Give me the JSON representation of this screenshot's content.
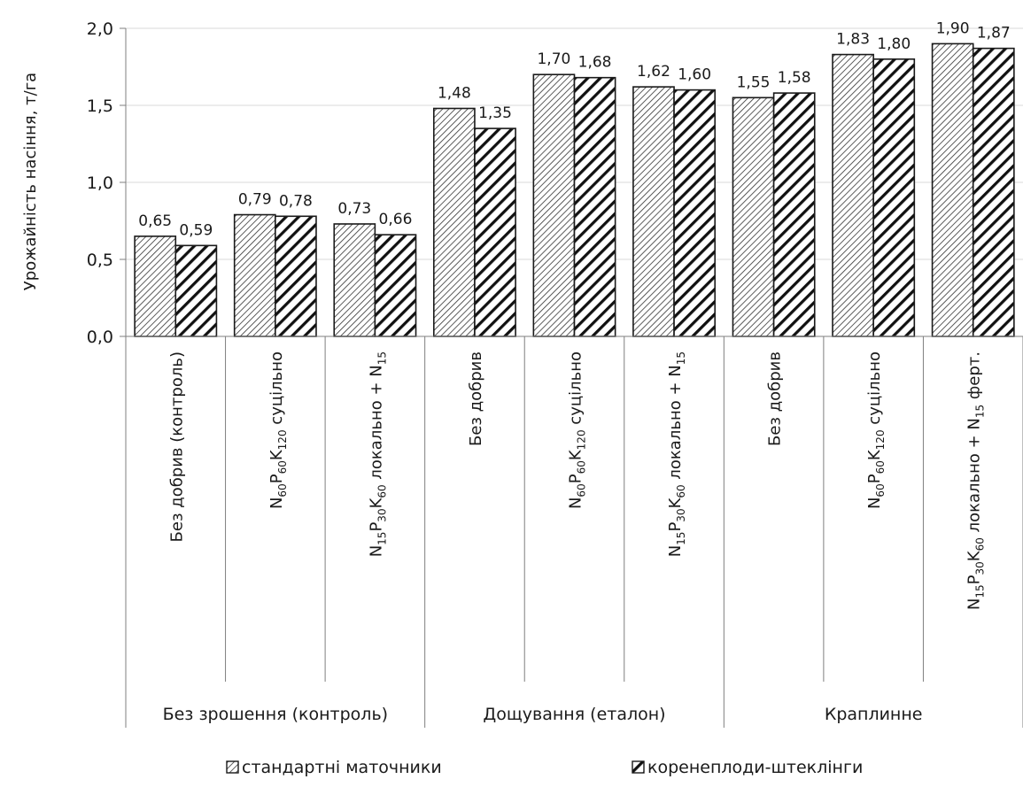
{
  "chart_data": {
    "type": "bar",
    "ylabel": "Урожайність насіння, т/га",
    "xlabel": "",
    "ylim": [
      0,
      2.0
    ],
    "yticks": [
      "0,0",
      "0,5",
      "1,0",
      "1,5",
      "2,0"
    ],
    "ytick_values": [
      0,
      0.5,
      1.0,
      1.5,
      2.0
    ],
    "grid": true,
    "legend_position": "bottom",
    "groups": [
      {
        "label": "Без зрошення (контроль)",
        "span": 3
      },
      {
        "label": "Дощування (еталон)",
        "span": 3
      },
      {
        "label": "Краплинне",
        "span": 3
      }
    ],
    "categories": [
      [
        {
          "t": "Без добрив (контроль)"
        }
      ],
      [
        {
          "t": "N"
        },
        {
          "t": "60",
          "sub": true
        },
        {
          "t": "P"
        },
        {
          "t": "60",
          "sub": true
        },
        {
          "t": "K"
        },
        {
          "t": "120",
          "sub": true
        },
        {
          "t": " суцільно"
        }
      ],
      [
        {
          "t": "N"
        },
        {
          "t": "15",
          "sub": true
        },
        {
          "t": "P"
        },
        {
          "t": "30",
          "sub": true
        },
        {
          "t": "K"
        },
        {
          "t": "60",
          "sub": true
        },
        {
          "t": " локально + N"
        },
        {
          "t": "15",
          "sub": true
        }
      ],
      [
        {
          "t": "Без добрив"
        }
      ],
      [
        {
          "t": "N"
        },
        {
          "t": "60",
          "sub": true
        },
        {
          "t": "P"
        },
        {
          "t": "60",
          "sub": true
        },
        {
          "t": "K"
        },
        {
          "t": "120",
          "sub": true
        },
        {
          "t": " суцільно"
        }
      ],
      [
        {
          "t": "N"
        },
        {
          "t": "15",
          "sub": true
        },
        {
          "t": "P"
        },
        {
          "t": "30",
          "sub": true
        },
        {
          "t": "K"
        },
        {
          "t": "60",
          "sub": true
        },
        {
          "t": " локально + N"
        },
        {
          "t": "15",
          "sub": true
        }
      ],
      [
        {
          "t": "Без добрив"
        }
      ],
      [
        {
          "t": "N"
        },
        {
          "t": "60",
          "sub": true
        },
        {
          "t": "P"
        },
        {
          "t": "60",
          "sub": true
        },
        {
          "t": "K"
        },
        {
          "t": "120",
          "sub": true
        },
        {
          "t": " суцільно"
        }
      ],
      [
        {
          "t": "N"
        },
        {
          "t": "15",
          "sub": true
        },
        {
          "t": "P"
        },
        {
          "t": "30",
          "sub": true
        },
        {
          "t": "K"
        },
        {
          "t": "60",
          "sub": true
        },
        {
          "t": " локально + N"
        },
        {
          "t": "15",
          "sub": true
        },
        {
          "t": " ферт."
        }
      ]
    ],
    "series": [
      {
        "name": "стандартні маточники",
        "pattern": "fine-hatch",
        "values": [
          0.65,
          0.79,
          0.73,
          1.48,
          1.7,
          1.62,
          1.55,
          1.83,
          1.9
        ],
        "labels": [
          "0,65",
          "0,79",
          "0,73",
          "1,48",
          "1,70",
          "1,62",
          "1,55",
          "1,83",
          "1,90"
        ]
      },
      {
        "name": "коренеплоди-штеклінги",
        "pattern": "bold-hatch",
        "values": [
          0.59,
          0.78,
          0.66,
          1.35,
          1.68,
          1.6,
          1.58,
          1.8,
          1.87
        ],
        "labels": [
          "0,59",
          "0,78",
          "0,66",
          "1,35",
          "1,68",
          "1,60",
          "1,58",
          "1,80",
          "1,87"
        ]
      }
    ],
    "colors": {
      "bar_stroke": "#1a1a1a",
      "axis": "#7f7f7f",
      "grid": "#d9d9d9",
      "hatch": "#1a1a1a"
    }
  }
}
